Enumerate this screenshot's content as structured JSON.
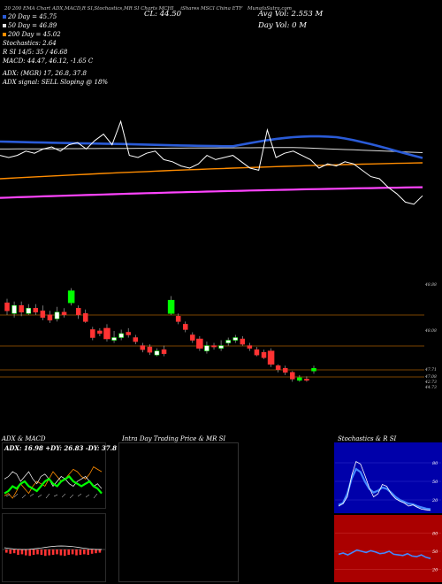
{
  "header": {
    "line1": "MunafaSutra.com",
    "line1_left": "20 200 EMA Chart ADX,MACD,R SI,Stochastics,MR SI Charts MCHI",
    "price": "CL: 44.50",
    "avg_vol": "Avg Vol: 2.553 M",
    "day_vol": "Day Vol: 0 M",
    "ticker_tag": "iShares MSCI China ETF",
    "sma20": "20 Day = 45.75",
    "sma50": "50 Day = 46.89",
    "sma200": "200 Day = 45.02",
    "stoch": "Stochastics: 2.64",
    "rsi": "R SI 14/5: 35 / 46.68",
    "macd": "MACD: 44.47, 46.12, -1.65 C",
    "adx": "ADX: (MGR) 17, 26.8, 37.8",
    "adx_signal": "ADX signal: SELL Sloping @ 18%"
  },
  "colors": {
    "price": "#ffffff",
    "ema20": "#2a5bd7",
    "ema50": "#dddddd",
    "ema200": "#ff8c00",
    "long_ma": "#ff44ff",
    "bull": "#00ff00",
    "bear": "#ff3333",
    "rule": "#a65a00",
    "stoch_k": "#4488ff",
    "stoch_panel": "#0000aa",
    "rsi_panel": "#aa0000"
  },
  "price_labels": [
    "48.88",
    "48.08",
    "47.71",
    "47.08",
    "42.73",
    "44.73"
  ],
  "chart_data": [
    {
      "type": "line",
      "title": "",
      "series": [
        {
          "name": "",
          "values": [
            47.6,
            47.5,
            47.6,
            47.8,
            47.7,
            47.9,
            48.0,
            47.8,
            48.1,
            48.2,
            47.9,
            48.3,
            48.6,
            48.1,
            49.2,
            47.6,
            47.5,
            47.7,
            47.8,
            47.4,
            47.3,
            47.1,
            47.0,
            47.2,
            47.6,
            47.4,
            47.5,
            47.6,
            47.3,
            47.0,
            46.9,
            48.8,
            47.5,
            47.7,
            47.8,
            47.6,
            47.4,
            47.0,
            47.2,
            47.1,
            47.3,
            47.2,
            46.9,
            46.6,
            46.5,
            46.1,
            45.8,
            45.4,
            45.3,
            45.7
          ]
        }
      ]
    },
    {
      "type": "bar",
      "title": "",
      "candles": [
        {
          "o": 47.9,
          "c": 47.6,
          "h": 48.05,
          "l": 47.45
        },
        {
          "o": 47.5,
          "c": 47.8,
          "h": 47.95,
          "l": 47.35
        },
        {
          "o": 47.8,
          "c": 47.55,
          "h": 47.95,
          "l": 47.4
        },
        {
          "o": 47.5,
          "c": 47.7,
          "h": 47.85,
          "l": 47.45
        },
        {
          "o": 47.7,
          "c": 47.55,
          "h": 47.85,
          "l": 47.45
        },
        {
          "o": 47.6,
          "c": 47.35,
          "h": 47.8,
          "l": 47.25
        },
        {
          "o": 47.45,
          "c": 47.25,
          "h": 47.6,
          "l": 47.15
        },
        {
          "o": 47.3,
          "c": 47.55,
          "h": 47.75,
          "l": 47.2
        },
        {
          "o": 47.55,
          "c": 47.45,
          "h": 47.7,
          "l": 47.35
        },
        {
          "o": 47.9,
          "c": 48.35,
          "h": 48.45,
          "l": 47.8
        },
        {
          "o": 47.7,
          "c": 47.45,
          "h": 47.8,
          "l": 47.3
        },
        {
          "o": 47.5,
          "c": 47.2,
          "h": 47.65,
          "l": 47.15
        },
        {
          "o": 46.9,
          "c": 46.6,
          "h": 47.0,
          "l": 46.5
        },
        {
          "o": 46.85,
          "c": 46.75,
          "h": 46.95,
          "l": 46.65
        },
        {
          "o": 46.95,
          "c": 46.55,
          "h": 47.1,
          "l": 46.45
        },
        {
          "o": 46.5,
          "c": 46.6,
          "h": 46.85,
          "l": 46.4
        },
        {
          "o": 46.6,
          "c": 46.75,
          "h": 46.9,
          "l": 46.5
        },
        {
          "o": 46.8,
          "c": 46.7,
          "h": 46.95,
          "l": 46.6
        },
        {
          "o": 46.6,
          "c": 46.45,
          "h": 46.7,
          "l": 46.35
        },
        {
          "o": 46.3,
          "c": 46.15,
          "h": 46.4,
          "l": 46.05
        },
        {
          "o": 46.25,
          "c": 46.05,
          "h": 46.35,
          "l": 45.95
        },
        {
          "o": 45.95,
          "c": 46.1,
          "h": 46.2,
          "l": 45.9
        },
        {
          "o": 46.15,
          "c": 46.0,
          "h": 46.3,
          "l": 45.9
        },
        {
          "o": 47.5,
          "c": 48.0,
          "h": 48.15,
          "l": 47.45
        },
        {
          "o": 47.4,
          "c": 47.2,
          "h": 47.5,
          "l": 47.1
        },
        {
          "o": 47.1,
          "c": 46.9,
          "h": 47.2,
          "l": 46.8
        },
        {
          "o": 46.7,
          "c": 46.5,
          "h": 46.8,
          "l": 46.4
        },
        {
          "o": 46.55,
          "c": 46.2,
          "h": 46.65,
          "l": 46.1
        },
        {
          "o": 46.1,
          "c": 46.3,
          "h": 46.45,
          "l": 46.0
        },
        {
          "o": 46.3,
          "c": 46.25,
          "h": 46.4,
          "l": 46.15
        },
        {
          "o": 46.2,
          "c": 46.3,
          "h": 46.5,
          "l": 46.1
        },
        {
          "o": 46.4,
          "c": 46.5,
          "h": 46.6,
          "l": 46.3
        },
        {
          "o": 46.5,
          "c": 46.6,
          "h": 46.7,
          "l": 46.4
        },
        {
          "o": 46.55,
          "c": 46.35,
          "h": 46.65,
          "l": 46.3
        },
        {
          "o": 46.3,
          "c": 46.2,
          "h": 46.4,
          "l": 46.1
        },
        {
          "o": 46.15,
          "c": 45.95,
          "h": 46.25,
          "l": 45.9
        },
        {
          "o": 46.05,
          "c": 45.85,
          "h": 46.15,
          "l": 45.8
        },
        {
          "o": 46.1,
          "c": 45.6,
          "h": 46.2,
          "l": 45.5
        },
        {
          "o": 45.55,
          "c": 45.4,
          "h": 45.6,
          "l": 45.3
        },
        {
          "o": 45.45,
          "c": 45.3,
          "h": 45.55,
          "l": 45.2
        },
        {
          "o": 45.3,
          "c": 45.05,
          "h": 45.35,
          "l": 44.95
        },
        {
          "o": 45.0,
          "c": 45.1,
          "h": 45.2,
          "l": 44.95
        },
        {
          "o": 45.05,
          "c": 45.0,
          "h": 45.15,
          "l": 44.95
        },
        {
          "o": 45.35,
          "c": 45.45,
          "h": 45.55,
          "l": 45.25
        }
      ]
    },
    {
      "type": "line",
      "title": "ADX & MACD",
      "subtitle": "ADX: 16.98 +DY: 26.83 -DY: 37.8",
      "series": [
        {
          "name": "",
          "values": [
            23,
            24,
            22,
            25,
            28,
            26,
            24,
            27,
            29,
            28,
            27,
            30,
            33,
            31,
            29,
            30,
            32,
            34,
            33,
            31,
            30,
            32,
            35,
            34,
            33
          ]
        },
        {
          "name": "",
          "values": [
            30,
            31,
            33,
            32,
            29,
            31,
            33,
            30,
            28,
            31,
            32,
            30,
            27,
            29,
            31,
            30,
            28,
            27,
            29,
            30,
            31,
            29,
            27,
            28,
            26
          ]
        },
        {
          "name": "",
          "values": [
            24,
            25,
            27,
            26,
            28,
            29,
            27,
            26,
            25,
            27,
            29,
            30,
            28,
            27,
            29,
            30,
            31,
            29,
            28,
            27,
            28,
            29,
            27,
            26,
            24
          ]
        }
      ]
    },
    {
      "type": "bar",
      "title": "",
      "values": [
        0.3,
        0.4,
        0.35,
        0.5,
        0.45,
        0.55,
        0.6,
        0.5,
        0.45,
        0.5,
        0.6,
        0.55,
        0.5,
        0.45,
        0.55,
        0.6,
        0.5,
        0.45,
        0.55,
        0.5,
        0.45,
        0.5,
        0.4,
        0.35,
        0.3
      ]
    },
    {
      "type": "line",
      "title": "Intra Day Trading Price & MR SI",
      "series": []
    },
    {
      "type": "line",
      "title": "Stochastics & R SI",
      "yticks": [
        "80",
        "50",
        "20"
      ],
      "series": [
        {
          "name": "",
          "values": [
            10,
            14,
            25,
            60,
            82,
            78,
            60,
            40,
            25,
            30,
            45,
            42,
            30,
            22,
            18,
            15,
            10,
            12,
            8,
            5,
            4,
            3
          ]
        },
        {
          "name": "",
          "values": [
            12,
            15,
            30,
            55,
            70,
            65,
            50,
            38,
            32,
            35,
            40,
            38,
            32,
            25,
            20,
            17,
            14,
            13,
            10,
            8,
            6,
            5
          ]
        }
      ]
    },
    {
      "type": "line",
      "title": "",
      "yticks": [
        "80",
        "50",
        "20"
      ],
      "series": [
        {
          "name": "",
          "values": [
            45,
            47,
            44,
            48,
            52,
            50,
            48,
            51,
            49,
            46,
            47,
            50,
            45,
            44,
            43,
            46,
            42,
            41,
            44,
            40,
            38
          ]
        }
      ]
    }
  ]
}
